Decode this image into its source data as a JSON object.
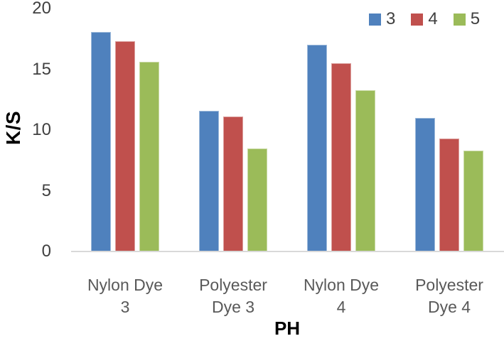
{
  "chart_data": {
    "type": "bar",
    "title": "",
    "xlabel": "PH",
    "ylabel": "K/S",
    "categories": [
      "Nylon Dye 3",
      "Polyester Dye 3",
      "Nylon Dye 4",
      "Polyester Dye 4"
    ],
    "series": [
      {
        "name": "3",
        "color": "#4F81BD",
        "values": [
          18.1,
          11.6,
          17.0,
          11.0
        ]
      },
      {
        "name": "4",
        "color": "#C0504D",
        "values": [
          17.3,
          11.1,
          15.5,
          9.3
        ]
      },
      {
        "name": "5",
        "color": "#9BBB59",
        "values": [
          15.6,
          8.5,
          13.3,
          8.3
        ]
      }
    ],
    "ylim": [
      0,
      20
    ],
    "yticks": [
      0,
      5,
      10,
      15,
      20
    ],
    "grid": false,
    "legend_position": "top-right",
    "colors": {
      "background": "#ffffff",
      "axis_line": "#d9d9d9",
      "tick_label": "#404040",
      "category_label": "#595959",
      "legend_label": "#404040",
      "axis_title": "#000000"
    }
  }
}
